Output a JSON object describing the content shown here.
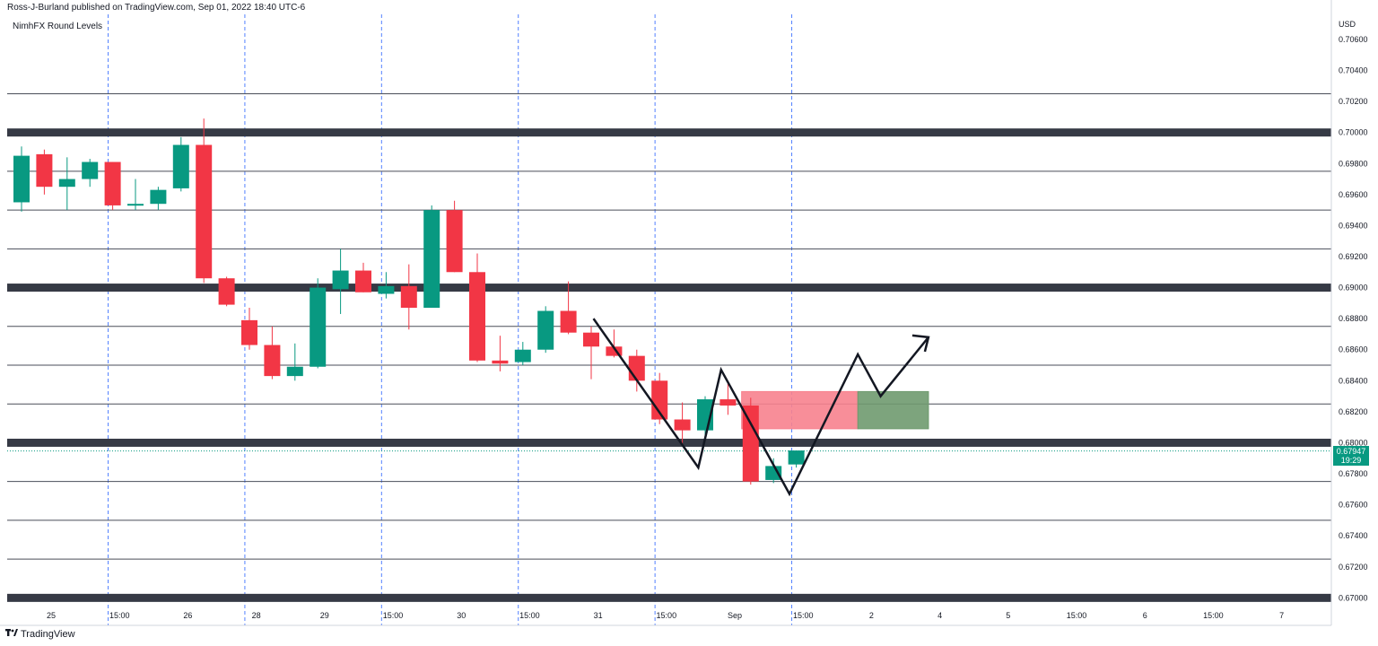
{
  "header": {
    "publisher_text": "Ross-J-Burland published on TradingView.com, Sep 01, 2022 18:40 UTC-6",
    "indicator_name": "NimhFX Round Levels",
    "currency": "USD"
  },
  "footer": {
    "brand": "TradingView",
    "logo_icon": "tradingview-logo-icon"
  },
  "last_price": {
    "value": "0.67947",
    "countdown": "19:29"
  },
  "colors": {
    "up": "#089981",
    "down": "#f23645",
    "round_level": "#363a45",
    "session_line": "#2962ff",
    "sell_zone": "#f7828e",
    "buy_zone": "#6f9a6f"
  },
  "chart_data": {
    "type": "candlestick",
    "title": "",
    "ylabel": "USD",
    "ylim": [
      0.6695,
      0.7075
    ],
    "y_ticks": [
      "0.70600",
      "0.70400",
      "0.70200",
      "0.70000",
      "0.69800",
      "0.69600",
      "0.69400",
      "0.69200",
      "0.69000",
      "0.68800",
      "0.68600",
      "0.68400",
      "0.68200",
      "0.68000",
      "0.67800",
      "0.67600",
      "0.67400",
      "0.67200",
      "0.67000"
    ],
    "x_ticks": [
      {
        "label": "25",
        "bar": 1.3
      },
      {
        "label": "15:00",
        "bar": 4.3
      },
      {
        "label": "26",
        "bar": 7.3
      },
      {
        "label": "28",
        "bar": 10.3
      },
      {
        "label": "29",
        "bar": 13.3
      },
      {
        "label": "15:00",
        "bar": 16.3
      },
      {
        "label": "30",
        "bar": 19.3
      },
      {
        "label": "15:00",
        "bar": 22.3
      },
      {
        "label": "31",
        "bar": 25.3
      },
      {
        "label": "15:00",
        "bar": 28.3
      },
      {
        "label": "Sep",
        "bar": 31.3
      },
      {
        "label": "15:00",
        "bar": 34.3
      },
      {
        "label": "2",
        "bar": 37.3
      },
      {
        "label": "4",
        "bar": 40.3
      },
      {
        "label": "5",
        "bar": 43.3
      },
      {
        "label": "15:00",
        "bar": 46.3
      },
      {
        "label": "6",
        "bar": 49.3
      },
      {
        "label": "15:00",
        "bar": 52.3
      },
      {
        "label": "7",
        "bar": 55.3
      }
    ],
    "session_lines_at_bar": [
      3.8,
      9.8,
      15.8,
      21.8,
      27.8,
      33.8
    ],
    "candles": [
      {
        "o": 0.6955,
        "h": 0.6991,
        "l": 0.6949,
        "c": 0.6985
      },
      {
        "o": 0.6986,
        "h": 0.6989,
        "l": 0.696,
        "c": 0.6965
      },
      {
        "o": 0.6965,
        "h": 0.6984,
        "l": 0.695,
        "c": 0.697
      },
      {
        "o": 0.697,
        "h": 0.6983,
        "l": 0.6965,
        "c": 0.6981
      },
      {
        "o": 0.6981,
        "h": 0.6981,
        "l": 0.695,
        "c": 0.6953
      },
      {
        "o": 0.6953,
        "h": 0.697,
        "l": 0.695,
        "c": 0.6954
      },
      {
        "o": 0.6954,
        "h": 0.6965,
        "l": 0.695,
        "c": 0.6963
      },
      {
        "o": 0.6964,
        "h": 0.6997,
        "l": 0.6962,
        "c": 0.6992
      },
      {
        "o": 0.6992,
        "h": 0.7009,
        "l": 0.6903,
        "c": 0.6906
      },
      {
        "o": 0.6906,
        "h": 0.6907,
        "l": 0.6888,
        "c": 0.6889
      },
      {
        "o": 0.6879,
        "h": 0.6887,
        "l": 0.686,
        "c": 0.6863
      },
      {
        "o": 0.6863,
        "h": 0.6875,
        "l": 0.6841,
        "c": 0.6843
      },
      {
        "o": 0.6843,
        "h": 0.6864,
        "l": 0.684,
        "c": 0.6849
      },
      {
        "o": 0.6849,
        "h": 0.6906,
        "l": 0.6848,
        "c": 0.69
      },
      {
        "o": 0.6899,
        "h": 0.6925,
        "l": 0.6883,
        "c": 0.6911
      },
      {
        "o": 0.6911,
        "h": 0.6916,
        "l": 0.6897,
        "c": 0.6897
      },
      {
        "o": 0.6896,
        "h": 0.691,
        "l": 0.6893,
        "c": 0.6901
      },
      {
        "o": 0.6901,
        "h": 0.6915,
        "l": 0.6873,
        "c": 0.6887
      },
      {
        "o": 0.6887,
        "h": 0.6953,
        "l": 0.6887,
        "c": 0.695
      },
      {
        "o": 0.695,
        "h": 0.6956,
        "l": 0.691,
        "c": 0.691
      },
      {
        "o": 0.691,
        "h": 0.6922,
        "l": 0.6852,
        "c": 0.6853
      },
      {
        "o": 0.6853,
        "h": 0.6869,
        "l": 0.6846,
        "c": 0.6851
      },
      {
        "o": 0.6852,
        "h": 0.6865,
        "l": 0.685,
        "c": 0.686
      },
      {
        "o": 0.686,
        "h": 0.6888,
        "l": 0.6858,
        "c": 0.6885
      },
      {
        "o": 0.6885,
        "h": 0.6904,
        "l": 0.687,
        "c": 0.6871
      },
      {
        "o": 0.6871,
        "h": 0.6875,
        "l": 0.6841,
        "c": 0.6862
      },
      {
        "o": 0.6862,
        "h": 0.6873,
        "l": 0.6855,
        "c": 0.6856
      },
      {
        "o": 0.6856,
        "h": 0.686,
        "l": 0.6833,
        "c": 0.684
      },
      {
        "o": 0.684,
        "h": 0.6845,
        "l": 0.6812,
        "c": 0.6815
      },
      {
        "o": 0.6815,
        "h": 0.6826,
        "l": 0.6798,
        "c": 0.6808
      },
      {
        "o": 0.6808,
        "h": 0.683,
        "l": 0.6804,
        "c": 0.6828
      },
      {
        "o": 0.6828,
        "h": 0.6838,
        "l": 0.6818,
        "c": 0.6824
      },
      {
        "o": 0.6824,
        "h": 0.6829,
        "l": 0.6773,
        "c": 0.6775
      },
      {
        "o": 0.6776,
        "h": 0.679,
        "l": 0.6774,
        "c": 0.6785
      },
      {
        "o": 0.6786,
        "h": 0.6795,
        "l": 0.6784,
        "c": 0.6795
      }
    ],
    "round_levels_major": [
      0.7,
      0.69,
      0.68,
      0.67
    ],
    "round_levels_minor": [
      0.7025,
      0.6975,
      0.695,
      0.6925,
      0.6875,
      0.685,
      0.6825,
      0.6775,
      0.675,
      0.6725
    ],
    "current_price_line": 0.67947,
    "zones": [
      {
        "name": "sell-zone",
        "x0": 31.6,
        "x1": 36.7,
        "y0": 0.6809,
        "y1": 0.6833
      },
      {
        "name": "buy-zone",
        "x0": 36.7,
        "x1": 39.8,
        "y0": 0.6809,
        "y1": 0.6833
      }
    ],
    "pattern_path": [
      {
        "bar": 25.1,
        "y": 0.688
      },
      {
        "bar": 29.7,
        "y": 0.6784
      },
      {
        "bar": 30.7,
        "y": 0.6847
      },
      {
        "bar": 33.7,
        "y": 0.6767
      },
      {
        "bar": 36.7,
        "y": 0.6857
      },
      {
        "bar": 37.7,
        "y": 0.683
      },
      {
        "bar": 39.8,
        "y": 0.6868
      }
    ]
  }
}
